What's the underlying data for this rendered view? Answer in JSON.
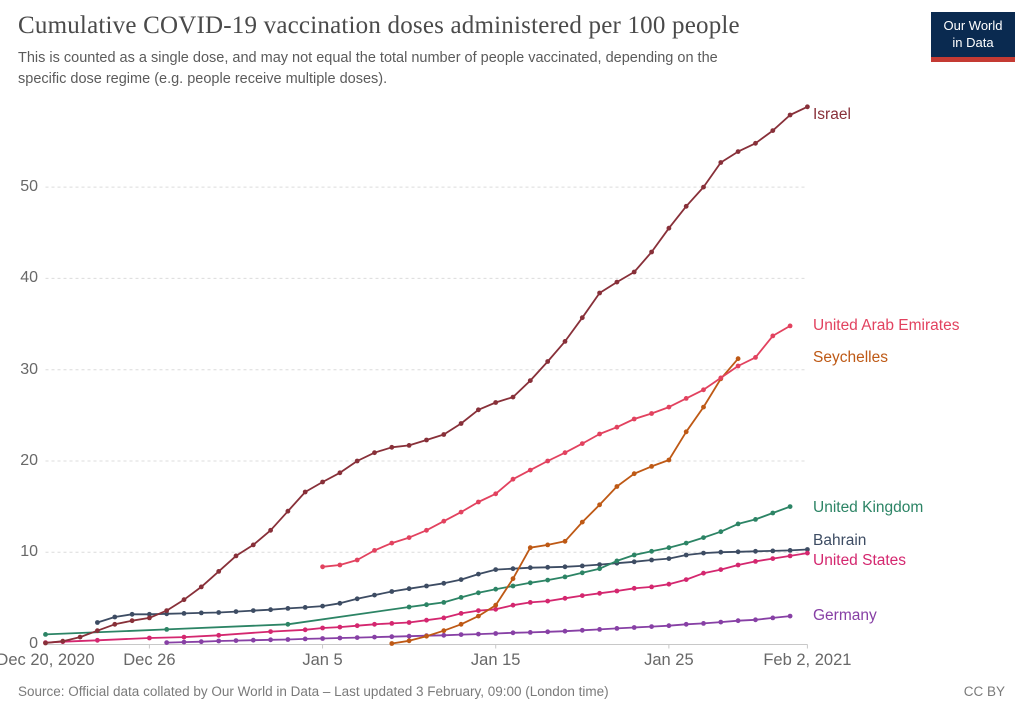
{
  "header": {
    "title": "Cumulative COVID-19 vaccination doses administered per 100 people",
    "subtitle": "This is counted as a single dose, and may not equal the total number of people vaccinated, depending on the\nspecific dose regime (e.g. people receive multiple doses)."
  },
  "logo": {
    "line1": "Our World",
    "line2": "in Data",
    "bg_color": "#0a2a50",
    "accent_color": "#c43a33"
  },
  "footer": {
    "source": "Source: Official data collated by Our World in Data – Last updated 3 February, 09:00 (London time)",
    "license": "CC BY"
  },
  "chart_data": {
    "type": "line",
    "title": "Cumulative COVID-19 vaccination doses administered per 100 people",
    "xlabel": "",
    "ylabel": "",
    "ylim": [
      0,
      60
    ],
    "grid": "dashed horizontal",
    "legend_position": "right-end-labels",
    "dates": [
      "Dec 20, 2020",
      "Dec 21",
      "Dec 22",
      "Dec 23",
      "Dec 24",
      "Dec 25",
      "Dec 26",
      "Dec 27",
      "Dec 28",
      "Dec 29",
      "Dec 30",
      "Dec 31",
      "Jan 1, 2021",
      "Jan 2",
      "Jan 3",
      "Jan 4",
      "Jan 5",
      "Jan 6",
      "Jan 7",
      "Jan 8",
      "Jan 9",
      "Jan 10",
      "Jan 11",
      "Jan 12",
      "Jan 13",
      "Jan 14",
      "Jan 15",
      "Jan 16",
      "Jan 17",
      "Jan 18",
      "Jan 19",
      "Jan 20",
      "Jan 21",
      "Jan 22",
      "Jan 23",
      "Jan 24",
      "Jan 25",
      "Jan 26",
      "Jan 27",
      "Jan 28",
      "Jan 29",
      "Jan 30",
      "Jan 31",
      "Feb 1",
      "Feb 2"
    ],
    "x_ticks": [
      {
        "day": 0,
        "label": "Dec 20, 2020"
      },
      {
        "day": 6,
        "label": "Dec 26"
      },
      {
        "day": 16,
        "label": "Jan 5"
      },
      {
        "day": 26,
        "label": "Jan 15"
      },
      {
        "day": 36,
        "label": "Jan 25"
      },
      {
        "day": 44,
        "label": "Feb 2, 2021"
      }
    ],
    "y_ticks": [
      0,
      10,
      20,
      30,
      40,
      50
    ],
    "series": [
      {
        "name": "Bahrain",
        "color": "#3d4c63",
        "label_dy": -8,
        "points": [
          [
            3,
            2.3
          ],
          [
            4,
            2.9
          ],
          [
            5,
            3.2
          ],
          [
            6,
            3.2
          ],
          [
            7,
            3.25
          ],
          [
            8,
            3.3
          ],
          [
            9,
            3.35
          ],
          [
            10,
            3.4
          ],
          [
            11,
            3.5
          ],
          [
            12,
            3.6
          ],
          [
            13,
            3.7
          ],
          [
            14,
            3.85
          ],
          [
            15,
            3.95
          ],
          [
            16,
            4.1
          ],
          [
            17,
            4.4
          ],
          [
            18,
            4.9
          ],
          [
            19,
            5.3
          ],
          [
            20,
            5.7
          ],
          [
            21,
            6.0
          ],
          [
            22,
            6.3
          ],
          [
            23,
            6.6
          ],
          [
            24,
            7.0
          ],
          [
            25,
            7.6
          ],
          [
            26,
            8.1
          ],
          [
            27,
            8.2
          ],
          [
            28,
            8.3
          ],
          [
            29,
            8.35
          ],
          [
            30,
            8.4
          ],
          [
            31,
            8.5
          ],
          [
            32,
            8.65
          ],
          [
            33,
            8.8
          ],
          [
            34,
            8.95
          ],
          [
            35,
            9.15
          ],
          [
            36,
            9.3
          ],
          [
            37,
            9.7
          ],
          [
            38,
            9.9
          ],
          [
            39,
            10.0
          ],
          [
            40,
            10.05
          ],
          [
            41,
            10.1
          ],
          [
            42,
            10.15
          ],
          [
            43,
            10.2
          ],
          [
            44,
            10.3
          ]
        ]
      },
      {
        "name": "United Kingdom",
        "color": "#2c8465",
        "label_dy": 1,
        "points": [
          [
            0,
            1.0
          ],
          [
            7,
            1.55
          ],
          [
            14,
            2.1
          ],
          [
            21,
            4.0
          ],
          [
            22,
            4.25
          ],
          [
            23,
            4.5
          ],
          [
            24,
            5.05
          ],
          [
            25,
            5.55
          ],
          [
            26,
            5.95
          ],
          [
            27,
            6.3
          ],
          [
            28,
            6.65
          ],
          [
            29,
            6.95
          ],
          [
            30,
            7.3
          ],
          [
            31,
            7.75
          ],
          [
            32,
            8.2
          ],
          [
            33,
            9.05
          ],
          [
            34,
            9.7
          ],
          [
            35,
            10.1
          ],
          [
            36,
            10.5
          ],
          [
            37,
            11.0
          ],
          [
            38,
            11.6
          ],
          [
            39,
            12.25
          ],
          [
            40,
            13.1
          ],
          [
            41,
            13.6
          ],
          [
            42,
            14.3
          ],
          [
            43,
            15.0
          ]
        ]
      },
      {
        "name": "United States",
        "color": "#d4276f",
        "label_dy": 8,
        "points": [
          [
            0,
            0.1
          ],
          [
            1,
            0.2
          ],
          [
            3,
            0.35
          ],
          [
            6,
            0.6
          ],
          [
            8,
            0.7
          ],
          [
            10,
            0.9
          ],
          [
            13,
            1.3
          ],
          [
            15,
            1.5
          ],
          [
            16,
            1.7
          ],
          [
            17,
            1.8
          ],
          [
            18,
            1.95
          ],
          [
            19,
            2.1
          ],
          [
            20,
            2.2
          ],
          [
            21,
            2.3
          ],
          [
            22,
            2.55
          ],
          [
            23,
            2.8
          ],
          [
            24,
            3.3
          ],
          [
            25,
            3.6
          ],
          [
            26,
            3.75
          ],
          [
            27,
            4.2
          ],
          [
            28,
            4.5
          ],
          [
            29,
            4.65
          ],
          [
            30,
            4.95
          ],
          [
            31,
            5.25
          ],
          [
            32,
            5.5
          ],
          [
            33,
            5.75
          ],
          [
            34,
            6.05
          ],
          [
            35,
            6.2
          ],
          [
            36,
            6.5
          ],
          [
            37,
            7.0
          ],
          [
            38,
            7.7
          ],
          [
            39,
            8.1
          ],
          [
            40,
            8.6
          ],
          [
            41,
            9.0
          ],
          [
            42,
            9.3
          ],
          [
            43,
            9.6
          ],
          [
            44,
            9.9
          ]
        ]
      },
      {
        "name": "Germany",
        "color": "#8740a5",
        "label_dy": 0,
        "points": [
          [
            7,
            0.1
          ],
          [
            8,
            0.15
          ],
          [
            9,
            0.2
          ],
          [
            10,
            0.27
          ],
          [
            11,
            0.32
          ],
          [
            12,
            0.36
          ],
          [
            13,
            0.4
          ],
          [
            14,
            0.44
          ],
          [
            15,
            0.5
          ],
          [
            16,
            0.55
          ],
          [
            17,
            0.6
          ],
          [
            18,
            0.65
          ],
          [
            19,
            0.7
          ],
          [
            20,
            0.75
          ],
          [
            21,
            0.8
          ],
          [
            22,
            0.85
          ],
          [
            23,
            0.9
          ],
          [
            24,
            0.97
          ],
          [
            25,
            1.03
          ],
          [
            26,
            1.1
          ],
          [
            27,
            1.17
          ],
          [
            28,
            1.22
          ],
          [
            29,
            1.28
          ],
          [
            30,
            1.35
          ],
          [
            31,
            1.45
          ],
          [
            32,
            1.55
          ],
          [
            33,
            1.65
          ],
          [
            34,
            1.75
          ],
          [
            35,
            1.85
          ],
          [
            36,
            1.95
          ],
          [
            37,
            2.1
          ],
          [
            38,
            2.2
          ],
          [
            39,
            2.35
          ],
          [
            40,
            2.5
          ],
          [
            41,
            2.6
          ],
          [
            42,
            2.8
          ],
          [
            43,
            3.0
          ]
        ]
      },
      {
        "name": "Seychelles",
        "color": "#be5915",
        "label_dy": -1,
        "points": [
          [
            20,
            0.0
          ],
          [
            21,
            0.3
          ],
          [
            22,
            0.8
          ],
          [
            23,
            1.4
          ],
          [
            24,
            2.1
          ],
          [
            25,
            3.0
          ],
          [
            26,
            4.2
          ],
          [
            27,
            7.1
          ],
          [
            28,
            10.5
          ],
          [
            29,
            10.8
          ],
          [
            30,
            11.2
          ],
          [
            31,
            13.3
          ],
          [
            32,
            15.2
          ],
          [
            33,
            17.2
          ],
          [
            34,
            18.6
          ],
          [
            35,
            19.4
          ],
          [
            36,
            20.1
          ],
          [
            37,
            23.2
          ],
          [
            38,
            25.9
          ],
          [
            39,
            29.0
          ],
          [
            40,
            31.2
          ]
        ]
      },
      {
        "name": "United Arab Emirates",
        "color": "#e2425f",
        "label_dy": 0,
        "points": [
          [
            16,
            8.4
          ],
          [
            17,
            8.6
          ],
          [
            18,
            9.15
          ],
          [
            19,
            10.2
          ],
          [
            20,
            11.0
          ],
          [
            21,
            11.6
          ],
          [
            22,
            12.4
          ],
          [
            23,
            13.4
          ],
          [
            24,
            14.4
          ],
          [
            25,
            15.5
          ],
          [
            26,
            16.4
          ],
          [
            27,
            18.0
          ],
          [
            28,
            19.0
          ],
          [
            29,
            20.0
          ],
          [
            30,
            20.9
          ],
          [
            31,
            21.9
          ],
          [
            32,
            22.95
          ],
          [
            33,
            23.7
          ],
          [
            34,
            24.6
          ],
          [
            35,
            25.2
          ],
          [
            36,
            25.9
          ],
          [
            37,
            26.85
          ],
          [
            38,
            27.8
          ],
          [
            39,
            29.1
          ],
          [
            40,
            30.4
          ],
          [
            41,
            31.35
          ],
          [
            42,
            33.7
          ],
          [
            43,
            34.8
          ]
        ]
      },
      {
        "name": "Israel",
        "color": "#883039",
        "label_dy": 8,
        "points": [
          [
            0,
            0.05
          ],
          [
            1,
            0.25
          ],
          [
            2,
            0.7
          ],
          [
            3,
            1.4
          ],
          [
            4,
            2.1
          ],
          [
            5,
            2.5
          ],
          [
            6,
            2.8
          ],
          [
            7,
            3.6
          ],
          [
            8,
            4.8
          ],
          [
            9,
            6.2
          ],
          [
            10,
            7.9
          ],
          [
            11,
            9.6
          ],
          [
            12,
            10.8
          ],
          [
            13,
            12.4
          ],
          [
            14,
            14.5
          ],
          [
            15,
            16.6
          ],
          [
            16,
            17.7
          ],
          [
            17,
            18.7
          ],
          [
            18,
            20.0
          ],
          [
            19,
            20.9
          ],
          [
            20,
            21.5
          ],
          [
            21,
            21.7
          ],
          [
            22,
            22.3
          ],
          [
            23,
            22.9
          ],
          [
            24,
            24.1
          ],
          [
            25,
            25.6
          ],
          [
            26,
            26.4
          ],
          [
            27,
            27.0
          ],
          [
            28,
            28.8
          ],
          [
            29,
            30.9
          ],
          [
            30,
            33.1
          ],
          [
            31,
            35.7
          ],
          [
            32,
            38.4
          ],
          [
            33,
            39.6
          ],
          [
            34,
            40.7
          ],
          [
            35,
            42.9
          ],
          [
            36,
            45.5
          ],
          [
            37,
            47.9
          ],
          [
            38,
            50.0
          ],
          [
            39,
            52.7
          ],
          [
            40,
            53.9
          ],
          [
            41,
            54.8
          ],
          [
            42,
            56.2
          ],
          [
            43,
            57.9
          ],
          [
            44,
            58.8
          ]
        ]
      }
    ]
  }
}
